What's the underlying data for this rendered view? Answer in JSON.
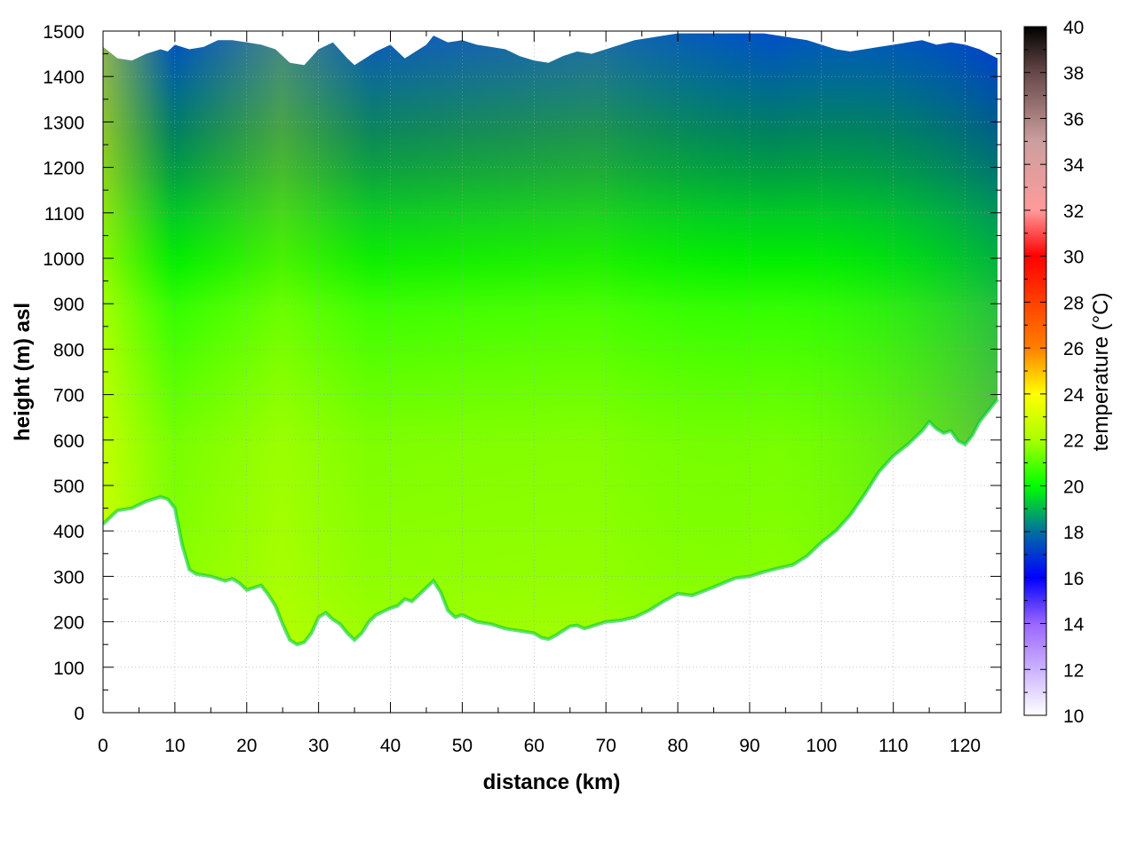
{
  "chart_data": {
    "type": "heatmap",
    "title": "",
    "xlabel": "distance (km)",
    "ylabel": "height (m) asl",
    "xlim": [
      0,
      125
    ],
    "ylim": [
      0,
      1500
    ],
    "x_ticks": [
      0,
      10,
      20,
      30,
      40,
      50,
      60,
      70,
      80,
      90,
      100,
      110,
      120
    ],
    "y_ticks": [
      0,
      100,
      200,
      300,
      400,
      500,
      600,
      700,
      800,
      900,
      1000,
      1100,
      1200,
      1300,
      1400,
      1500
    ],
    "grid": true,
    "colorbar": {
      "label": "temperature (°C)",
      "range": [
        10,
        40
      ],
      "ticks": [
        10,
        12,
        14,
        16,
        18,
        20,
        22,
        24,
        26,
        28,
        30,
        32,
        34,
        36,
        38,
        40
      ],
      "colors": [
        {
          "value": 10,
          "color": "#ffffff"
        },
        {
          "value": 14,
          "color": "#9966ff"
        },
        {
          "value": 16,
          "color": "#0000ff"
        },
        {
          "value": 18,
          "color": "#006fa0"
        },
        {
          "value": 20,
          "color": "#00ff00"
        },
        {
          "value": 22,
          "color": "#aaff00"
        },
        {
          "value": 24,
          "color": "#ffff00"
        },
        {
          "value": 26,
          "color": "#ff8000"
        },
        {
          "value": 28,
          "color": "#ff4000"
        },
        {
          "value": 30,
          "color": "#ff0000"
        },
        {
          "value": 32,
          "color": "#ff9a9a"
        },
        {
          "value": 35,
          "color": "#cc9f9f"
        },
        {
          "value": 38,
          "color": "#664848"
        },
        {
          "value": 40,
          "color": "#000000"
        }
      ]
    },
    "terrain": {
      "x": [
        0,
        2,
        4,
        6,
        8,
        9,
        10,
        11,
        12,
        13,
        15,
        17,
        18,
        19,
        20,
        21,
        22,
        23,
        24,
        25,
        26,
        27,
        28,
        29,
        30,
        31,
        32,
        33,
        34,
        35,
        36,
        37,
        38,
        40,
        41,
        42,
        43,
        44,
        45,
        46,
        47,
        48,
        49,
        50,
        52,
        54,
        56,
        58,
        60,
        61,
        62,
        63,
        64,
        65,
        66,
        67,
        68,
        70,
        72,
        74,
        76,
        78,
        80,
        82,
        84,
        86,
        88,
        90,
        92,
        94,
        96,
        98,
        100,
        102,
        104,
        106,
        108,
        110,
        112,
        114,
        115,
        116,
        117,
        118,
        119,
        120,
        121,
        122,
        123,
        124.5
      ],
      "height": [
        415,
        445,
        450,
        465,
        475,
        470,
        450,
        370,
        315,
        305,
        300,
        290,
        295,
        285,
        270,
        275,
        280,
        260,
        235,
        195,
        160,
        150,
        155,
        175,
        210,
        220,
        205,
        195,
        175,
        160,
        175,
        200,
        215,
        230,
        235,
        250,
        245,
        260,
        275,
        290,
        265,
        225,
        210,
        215,
        200,
        195,
        185,
        180,
        175,
        165,
        162,
        170,
        180,
        190,
        192,
        185,
        190,
        200,
        203,
        210,
        225,
        245,
        262,
        258,
        270,
        283,
        296,
        300,
        310,
        318,
        325,
        345,
        375,
        400,
        435,
        480,
        530,
        565,
        590,
        620,
        640,
        625,
        615,
        620,
        598,
        590,
        610,
        640,
        660,
        690
      ]
    },
    "top": {
      "x": [
        0,
        2,
        4,
        6,
        8,
        9,
        10,
        12,
        14,
        16,
        18,
        20,
        22,
        24,
        26,
        28,
        30,
        32,
        34,
        35,
        36,
        38,
        40,
        42,
        44,
        45,
        46,
        48,
        50,
        52,
        54,
        56,
        58,
        60,
        62,
        64,
        66,
        68,
        70,
        72,
        74,
        76,
        78,
        80,
        82,
        84,
        86,
        88,
        90,
        92,
        94,
        96,
        98,
        100,
        102,
        104,
        106,
        108,
        110,
        112,
        114,
        116,
        118,
        120,
        122,
        124.5
      ],
      "height": [
        1465,
        1440,
        1435,
        1450,
        1460,
        1455,
        1470,
        1460,
        1465,
        1480,
        1480,
        1475,
        1470,
        1460,
        1430,
        1425,
        1460,
        1475,
        1440,
        1425,
        1435,
        1455,
        1470,
        1440,
        1460,
        1470,
        1490,
        1475,
        1480,
        1470,
        1465,
        1460,
        1445,
        1435,
        1430,
        1445,
        1455,
        1450,
        1460,
        1470,
        1480,
        1485,
        1490,
        1495,
        1495,
        1495,
        1495,
        1495,
        1495,
        1495,
        1490,
        1485,
        1480,
        1470,
        1460,
        1455,
        1460,
        1465,
        1470,
        1475,
        1480,
        1470,
        1475,
        1470,
        1460,
        1440
      ]
    }
  }
}
